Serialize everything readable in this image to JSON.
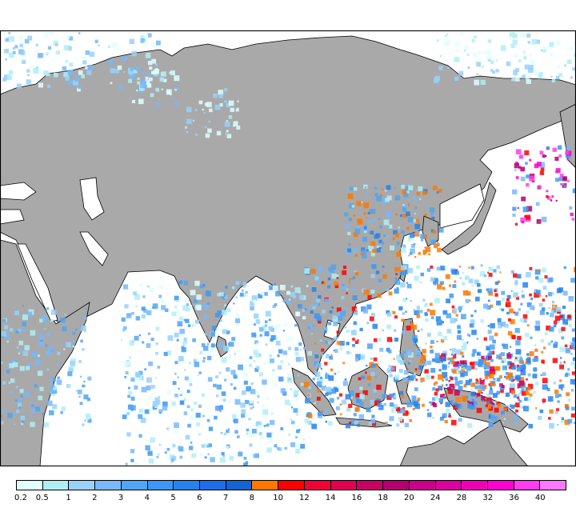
{
  "colorbar": {
    "labels": [
      "0.2",
      "0.5",
      "1",
      "2",
      "3",
      "4",
      "5",
      "6",
      "7",
      "8",
      "10",
      "12",
      "14",
      "16",
      "18",
      "20",
      "24",
      "28",
      "32",
      "36",
      "40"
    ],
    "colors": [
      "#e0ffff",
      "#b0eef5",
      "#96d2fa",
      "#78b9fa",
      "#50a5f5",
      "#3c96f5",
      "#2882eb",
      "#1e6eeb",
      "#1464d2",
      "#ff7800",
      "#ff0000",
      "#f00037",
      "#e10050",
      "#c80064",
      "#b4006e",
      "#c8008c",
      "#dc00a0",
      "#f000b4",
      "#ff00d2",
      "#ff3cf0",
      "#ff78ff"
    ]
  },
  "map": {
    "land_color": "#a9a9a9",
    "ocean_color": "#ffffff",
    "coastline_color": "#000000"
  }
}
